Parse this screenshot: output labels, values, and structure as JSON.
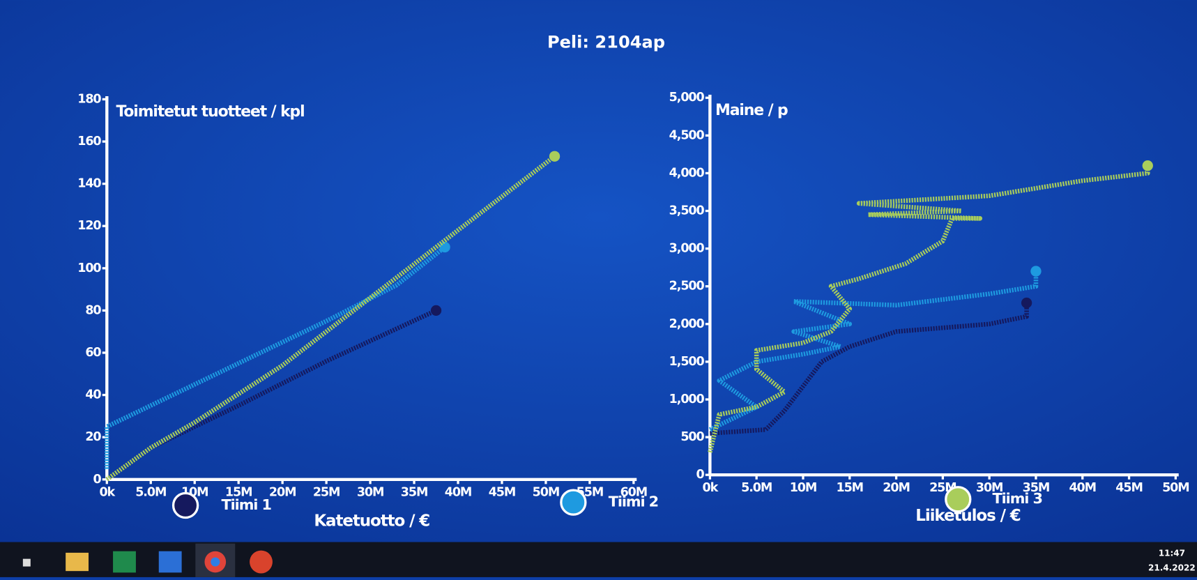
{
  "title": "Peli: 2104ap",
  "legend": [
    {
      "name": "Tiimi 1",
      "color": "#15195e"
    },
    {
      "name": "Tiimi 2",
      "color": "#1e9ae0"
    },
    {
      "name": "Tiimi 3",
      "color": "#a9cd5b"
    }
  ],
  "taskbar": {
    "time": "11:47",
    "date": "21.4.2022"
  },
  "chart_data": [
    {
      "type": "line",
      "y_label": "Toimitetut tuotteet / kpl",
      "x_label": "Katetuotto / €",
      "xlim": [
        0,
        60000000
      ],
      "ylim": [
        0,
        180
      ],
      "xticks": [
        {
          "value": 0,
          "label": "0k"
        },
        {
          "value": 5000000,
          "label": "5.0M"
        },
        {
          "value": 10000000,
          "label": "10M"
        },
        {
          "value": 15000000,
          "label": "15M"
        },
        {
          "value": 20000000,
          "label": "20M"
        },
        {
          "value": 25000000,
          "label": "25M"
        },
        {
          "value": 30000000,
          "label": "30M"
        },
        {
          "value": 35000000,
          "label": "35M"
        },
        {
          "value": 40000000,
          "label": "40M"
        },
        {
          "value": 45000000,
          "label": "45M"
        },
        {
          "value": 50000000,
          "label": "50M"
        },
        {
          "value": 55000000,
          "label": "55M"
        },
        {
          "value": 60000000,
          "label": "60M"
        }
      ],
      "yticks": [
        0,
        20,
        40,
        60,
        80,
        100,
        120,
        140,
        160,
        180
      ],
      "series": [
        {
          "color": "#15195e",
          "x": [
            0,
            5000000,
            15000000,
            25000000,
            37500000
          ],
          "values": [
            0,
            15,
            35,
            56,
            80
          ]
        },
        {
          "color": "#1e9ae0",
          "x": [
            0,
            0,
            5000000,
            15000000,
            25000000,
            33000000,
            38500000
          ],
          "values": [
            5,
            25,
            35,
            55,
            75,
            92,
            110
          ]
        },
        {
          "color": "#a9cd5b",
          "x": [
            0,
            5000000,
            10000000,
            20000000,
            30000000,
            40000000,
            51000000
          ],
          "values": [
            0,
            15,
            27,
            54,
            86,
            118,
            153
          ]
        }
      ]
    },
    {
      "type": "line",
      "y_label": "Maine / p",
      "x_label": "Liiketulos / €",
      "xlim": [
        0,
        50000000
      ],
      "ylim": [
        0,
        5000
      ],
      "xticks": [
        {
          "value": 0,
          "label": "0k"
        },
        {
          "value": 5000000,
          "label": "5.0M"
        },
        {
          "value": 10000000,
          "label": "10M"
        },
        {
          "value": 15000000,
          "label": "15M"
        },
        {
          "value": 20000000,
          "label": "20M"
        },
        {
          "value": 25000000,
          "label": "25M"
        },
        {
          "value": 30000000,
          "label": "30M"
        },
        {
          "value": 35000000,
          "label": "35M"
        },
        {
          "value": 40000000,
          "label": "40M"
        },
        {
          "value": 45000000,
          "label": "45M"
        },
        {
          "value": 50000000,
          "label": "50M"
        }
      ],
      "yticks": [
        0,
        500,
        {
          "value": 1000,
          "label": "1,000"
        },
        {
          "value": 1500,
          "label": "1,500"
        },
        {
          "value": 2000,
          "label": "2,000"
        },
        {
          "value": 2500,
          "label": "2,500"
        },
        {
          "value": 3000,
          "label": "3,000"
        },
        {
          "value": 3500,
          "label": "3,500"
        },
        {
          "value": 4000,
          "label": "4,000"
        },
        {
          "value": 4500,
          "label": "4,500"
        },
        {
          "value": 5000,
          "label": "5,000"
        }
      ],
      "series": [
        {
          "color": "#15195e",
          "x": [
            0,
            6000000,
            8000000,
            12000000,
            15000000,
            20000000,
            30000000,
            34000000,
            34000000
          ],
          "values": [
            550,
            600,
            850,
            1500,
            1700,
            1900,
            2000,
            2100,
            2280
          ]
        },
        {
          "color": "#1e9ae0",
          "x": [
            0,
            5000000,
            1000000,
            5000000,
            10000000,
            14000000,
            9000000,
            15000000,
            9000000,
            20000000,
            30000000,
            35000000,
            35000000
          ],
          "values": [
            600,
            900,
            1250,
            1500,
            1600,
            1700,
            1900,
            2000,
            2300,
            2250,
            2400,
            2500,
            2700
          ]
        },
        {
          "color": "#a9cd5b",
          "x": [
            0,
            1000000,
            5000000,
            8000000,
            5000000,
            5000000,
            10000000,
            13000000,
            15000000,
            13000000,
            16000000,
            21000000,
            25000000,
            26000000,
            29000000,
            17000000,
            27000000,
            16000000,
            30000000,
            40000000,
            47000000,
            47000000
          ],
          "values": [
            300,
            800,
            900,
            1100,
            1400,
            1650,
            1750,
            1900,
            2200,
            2500,
            2600,
            2800,
            3100,
            3400,
            3400,
            3450,
            3500,
            3600,
            3700,
            3900,
            4000,
            4100
          ]
        }
      ]
    }
  ]
}
